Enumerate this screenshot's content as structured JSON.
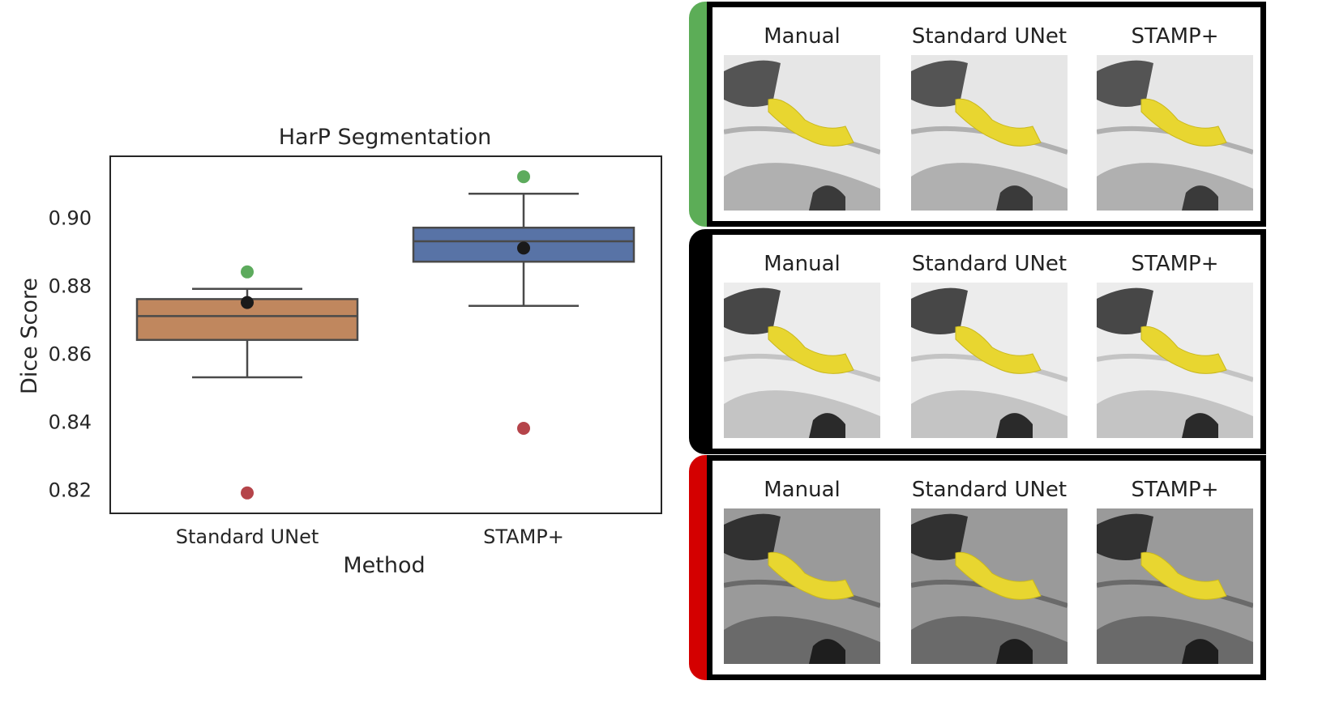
{
  "chart_data": {
    "type": "box",
    "title": "HarP Segmentation",
    "xlabel": "Method",
    "ylabel": "Dice Score",
    "categories": [
      "Standard UNet",
      "STAMP+"
    ],
    "ylim": [
      0.813,
      0.918
    ],
    "yticks": [
      "0.82",
      "0.84",
      "0.86",
      "0.88",
      "0.90"
    ],
    "grid": false,
    "boxes": [
      {
        "name": "Standard UNet",
        "whisker_low": 0.853,
        "q1": 0.864,
        "median": 0.871,
        "q3": 0.876,
        "whisker_high": 0.879,
        "mean": 0.875,
        "highlight_high": 0.884,
        "highlight_low": 0.819,
        "color": "#c0875e"
      },
      {
        "name": "STAMP+",
        "whisker_low": 0.874,
        "q1": 0.887,
        "median": 0.893,
        "q3": 0.897,
        "whisker_high": 0.907,
        "mean": 0.891,
        "highlight_high": 0.912,
        "highlight_low": 0.838,
        "color": "#5873a6"
      }
    ],
    "marker_colors": {
      "high": "#5dab5d",
      "low": "#b5444a",
      "mean": "#1a1a1a"
    }
  },
  "examples": {
    "column_labels": [
      "Manual",
      "Standard UNet",
      "STAMP+"
    ],
    "rows": [
      {
        "accent": "#5cad57",
        "tone": "light"
      },
      {
        "accent": "#000000",
        "tone": "pale"
      },
      {
        "accent": "#d40000",
        "tone": "dark"
      }
    ]
  }
}
